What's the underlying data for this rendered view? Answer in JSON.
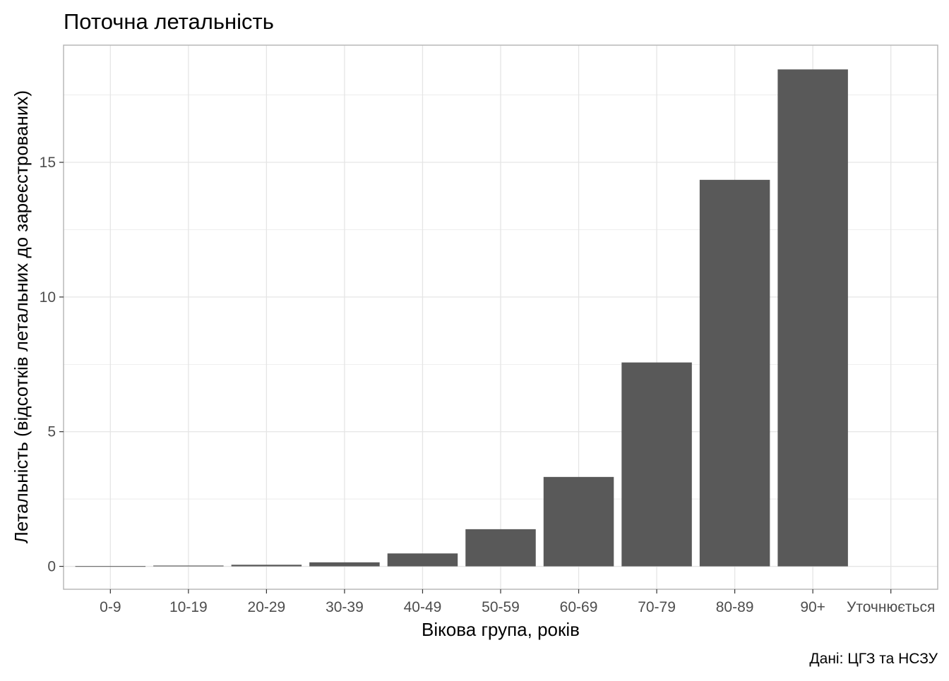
{
  "chart_data": {
    "type": "bar",
    "title": "Поточна летальність",
    "xlabel": "Вікова група, років",
    "ylabel": "Летальність (відсотків летальних до зареєстрованих)",
    "caption": "Дані: ЦГЗ та НСЗУ",
    "categories": [
      "0-9",
      "10-19",
      "20-29",
      "30-39",
      "40-49",
      "50-59",
      "60-69",
      "70-79",
      "80-89",
      "90+",
      "Уточнюється"
    ],
    "values": [
      0.01,
      0.03,
      0.06,
      0.15,
      0.48,
      1.38,
      3.32,
      7.57,
      14.35,
      18.45,
      0
    ],
    "ylim": [
      -0.85,
      19.35
    ],
    "yticks": [
      0,
      5,
      10,
      15
    ],
    "grid": true,
    "colors": {
      "bar": "#595959",
      "grid": "#e5e5e5",
      "panel_border": "#b3b3b3",
      "tick_text": "#4d4d4d",
      "label_text": "#000000"
    }
  }
}
